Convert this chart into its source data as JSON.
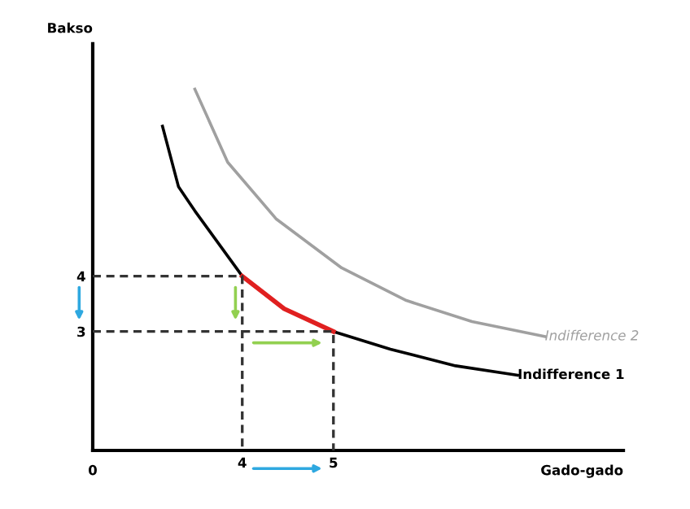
{
  "chart_data": {
    "type": "line",
    "xlabel": "Gado-gado",
    "ylabel": "Bakso",
    "xlim": [
      2.36,
      8.18
    ],
    "ylim": [
      0.85,
      8.2
    ],
    "xticks": [
      4,
      5
    ],
    "yticks": [
      3,
      4
    ],
    "grid": false,
    "legend": false,
    "marker": "none",
    "annotations": [
      "0"
    ],
    "series": [
      {
        "name": "Indifference 2",
        "color": "#a0a0a0",
        "x": [
          3.48,
          3.84,
          4.375,
          5.09,
          5.8,
          6.52,
          7.32
        ],
        "values": [
          7.38,
          6.06,
          5.03,
          4.15,
          3.56,
          3.18,
          2.91
        ]
      },
      {
        "name": "Indifference 1",
        "color": "#000000",
        "x": [
          3.125,
          3.3,
          3.48,
          4,
          4.46,
          5,
          5.625,
          6.34,
          7.02
        ],
        "values": [
          6.71,
          5.62,
          5.18,
          4,
          null,
          3,
          2.68,
          2.38,
          2.21
        ]
      },
      {
        "color": "#e02020",
        "x": [
          4,
          4.46,
          5
        ],
        "values": [
          4,
          3.41,
          3
        ]
      },
      {
        "color": "#333333",
        "line_style": "dashed",
        "x": [
          2.36,
          4,
          4
        ],
        "values": [
          4,
          4,
          0.85
        ]
      },
      {
        "color": "#333333",
        "line_style": "dashed",
        "x": [
          2.36,
          5,
          5
        ],
        "values": [
          3,
          3,
          0.85
        ]
      }
    ]
  }
}
